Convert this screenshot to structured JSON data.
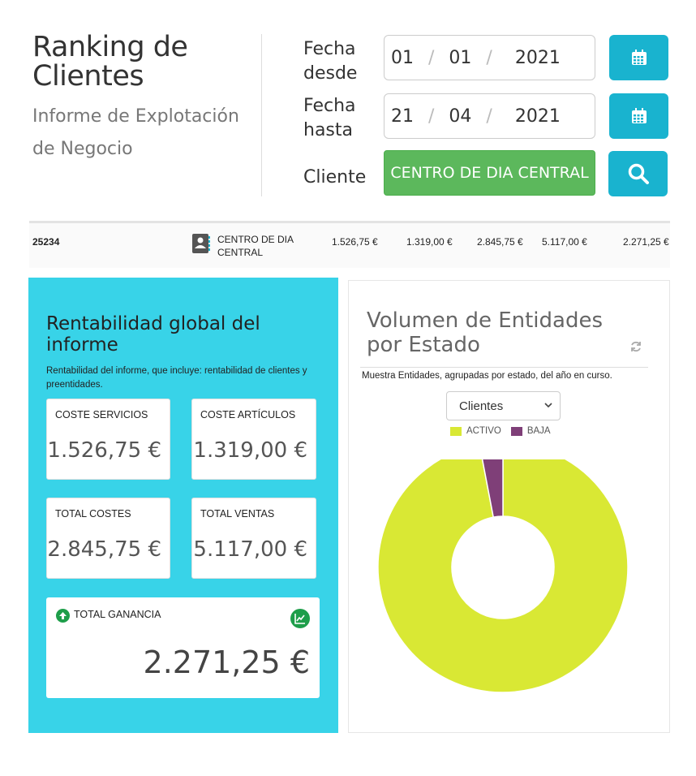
{
  "header": {
    "title": "Ranking de Clientes",
    "subtitle": "Informe de Explotación de Negocio"
  },
  "filters": {
    "fecha_desde_label": "Fecha desde",
    "fecha_desde": {
      "day": "01",
      "month": "01",
      "year": "2021"
    },
    "fecha_hasta_label": "Fecha hasta",
    "fecha_hasta": {
      "day": "21",
      "month": "04",
      "year": "2021"
    },
    "sep": "/",
    "cliente_label": "Cliente",
    "cliente_value": "CENTRO DE DIA CENTRAL"
  },
  "row": {
    "id": "25234",
    "name": "CENTRO DE DIA CENTRAL",
    "values": [
      "1.526,75 €",
      "1.319,00 €",
      "2.845,75 €",
      "5.117,00 €",
      "2.271,25 €"
    ]
  },
  "summary": {
    "title": "Rentabilidad global del informe",
    "description": "Rentabilidad del informe, que incluye: rentabilidad de clientes y preentidades.",
    "coste_servicios_label": "COSTE SERVICIOS",
    "coste_servicios": "1.526,75 €",
    "coste_articulos_label": "COSTE ARTÍCULOS",
    "coste_articulos": "1.319,00 €",
    "total_costes_label": "TOTAL COSTES",
    "total_costes": "2.845,75 €",
    "total_ventas_label": "TOTAL VENTAS",
    "total_ventas": "5.117,00 €",
    "total_ganancia_label": "TOTAL GANANCIA",
    "total_ganancia": "2.271,25 €"
  },
  "entities": {
    "title": "Volumen de Entidades por Estado",
    "description": "Muestra Entidades, agrupadas por estado, del año en curso.",
    "select_value": "Clientes"
  },
  "colors": {
    "accent": "#38d3e8",
    "button": "#19b3cf",
    "success": "#5cb85c",
    "activo": "#d9e834",
    "baja": "#7f3f78"
  },
  "chart_data": {
    "type": "pie",
    "donut": true,
    "categories": [
      "ACTIVO",
      "BAJA"
    ],
    "values": [
      97,
      3
    ],
    "colors": [
      "#d9e834",
      "#7f3f78"
    ],
    "legend": "top"
  }
}
